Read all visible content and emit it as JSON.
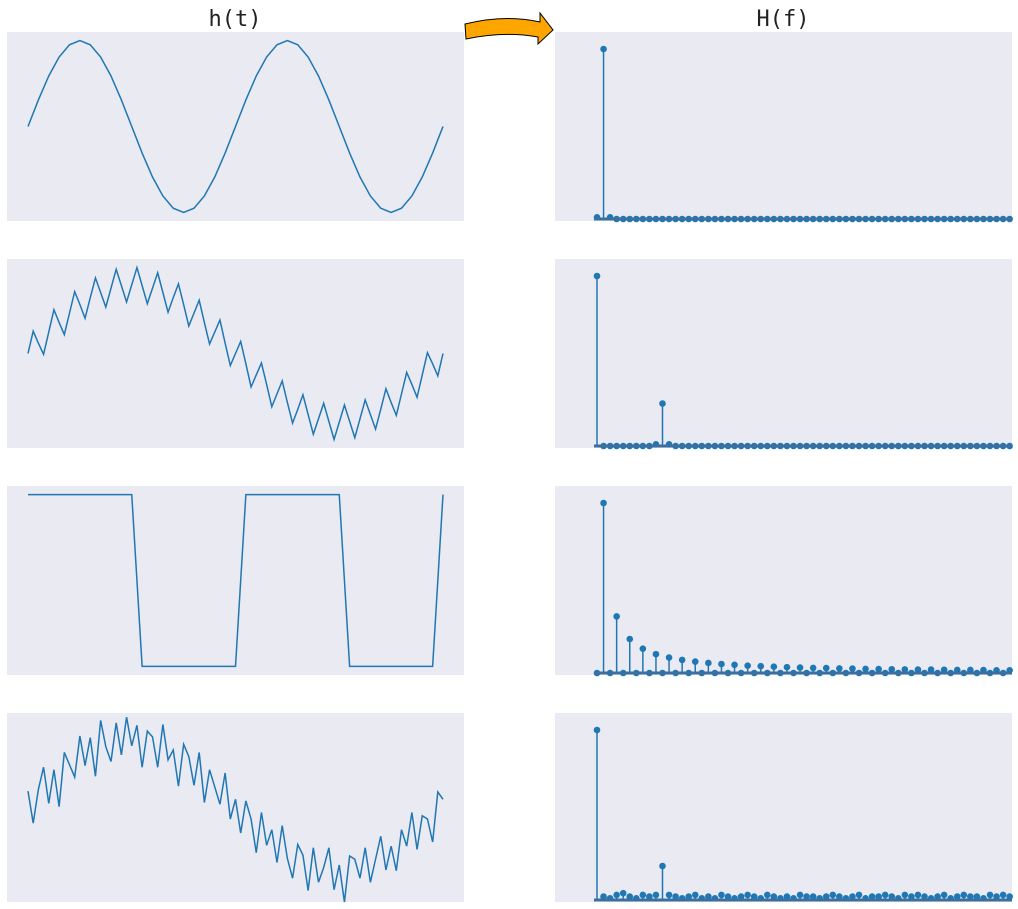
{
  "chart_data": [
    {
      "type": "line",
      "title": "h(t)",
      "color": "#1f77b4",
      "ylim": [
        -1.1,
        1.1
      ],
      "values": [
        0,
        0.309,
        0.588,
        0.809,
        0.951,
        1,
        0.951,
        0.809,
        0.588,
        0.309,
        0,
        -0.309,
        -0.588,
        -0.809,
        -0.951,
        -1,
        -0.951,
        -0.809,
        -0.588,
        -0.309,
        0,
        0.309,
        0.588,
        0.809,
        0.951,
        1,
        0.951,
        0.809,
        0.588,
        0.309,
        0,
        -0.309,
        -0.588,
        -0.809,
        -0.951,
        -1,
        -0.951,
        -0.809,
        -0.588,
        -0.309,
        0
      ]
    },
    {
      "type": "stem",
      "title": "H(f)",
      "color": "#1f77b4",
      "ylim": [
        0,
        1.1
      ],
      "values": [
        0.01,
        1,
        0.01,
        0,
        0,
        0,
        0,
        0,
        0,
        0,
        0,
        0,
        0,
        0,
        0,
        0,
        0,
        0,
        0,
        0,
        0,
        0,
        0,
        0,
        0,
        0,
        0,
        0,
        0,
        0,
        0,
        0,
        0,
        0,
        0,
        0,
        0,
        0,
        0,
        0,
        0,
        0,
        0,
        0,
        0,
        0,
        0,
        0,
        0,
        0,
        0,
        0,
        0,
        0,
        0,
        0,
        0,
        0,
        0,
        0,
        0,
        0,
        0,
        0
      ]
    },
    {
      "type": "line",
      "color": "#1f77b4",
      "ylim": [
        -1.1,
        1.1
      ],
      "values": [
        0,
        0.26,
        0.12,
        -0.01,
        0.25,
        0.51,
        0.36,
        0.22,
        0.47,
        0.72,
        0.57,
        0.41,
        0.65,
        0.88,
        0.71,
        0.54,
        0.76,
        0.98,
        0.79,
        0.6,
        0.8,
        1.0,
        0.79,
        0.58,
        0.76,
        0.94,
        0.71,
        0.48,
        0.65,
        0.81,
        0.57,
        0.32,
        0.47,
        0.62,
        0.36,
        0.11,
        0.25,
        0.39,
        0.12,
        -0.14,
        0,
        0.14,
        -0.12,
        -0.39,
        -0.25,
        -0.11,
        -0.36,
        -0.62,
        -0.47,
        -0.32,
        -0.57,
        -0.81,
        -0.65,
        -0.48,
        -0.71,
        -0.94,
        -0.76,
        -0.58,
        -0.79,
        -1.0,
        -0.8,
        -0.6,
        -0.79,
        -0.98,
        -0.76,
        -0.54,
        -0.71,
        -0.88,
        -0.65,
        -0.41,
        -0.57,
        -0.72,
        -0.47,
        -0.22,
        -0.36,
        -0.51,
        -0.25,
        0.01,
        -0.12,
        -0.26,
        0
      ]
    },
    {
      "type": "stem",
      "color": "#1f77b4",
      "ylim": [
        0,
        1.1
      ],
      "values": [
        1,
        0,
        0,
        0,
        0,
        0,
        0,
        0,
        0,
        0.01,
        0.25,
        0.01,
        0,
        0,
        0,
        0,
        0,
        0,
        0,
        0,
        0,
        0,
        0,
        0,
        0,
        0,
        0,
        0,
        0,
        0,
        0,
        0,
        0,
        0,
        0,
        0,
        0,
        0,
        0,
        0,
        0,
        0,
        0,
        0,
        0,
        0,
        0,
        0,
        0,
        0,
        0,
        0,
        0,
        0,
        0,
        0,
        0,
        0,
        0,
        0,
        0,
        0,
        0,
        0
      ]
    },
    {
      "type": "line",
      "color": "#1f77b4",
      "ylim": [
        -1.1,
        1.1
      ],
      "values": [
        1,
        1,
        1,
        1,
        1,
        1,
        1,
        1,
        1,
        1,
        1,
        -1,
        -1,
        -1,
        -1,
        -1,
        -1,
        -1,
        -1,
        -1,
        -1,
        1,
        1,
        1,
        1,
        1,
        1,
        1,
        1,
        1,
        1,
        -1,
        -1,
        -1,
        -1,
        -1,
        -1,
        -1,
        -1,
        -1,
        1
      ]
    },
    {
      "type": "stem",
      "color": "#1f77b4",
      "ylim": [
        0,
        1.1
      ],
      "values": [
        0,
        1,
        0,
        0.333,
        0,
        0.2,
        0,
        0.143,
        0,
        0.111,
        0,
        0.091,
        0,
        0.077,
        0,
        0.067,
        0,
        0.059,
        0,
        0.053,
        0,
        0.048,
        0,
        0.043,
        0,
        0.04,
        0,
        0.037,
        0,
        0.034,
        0,
        0.032,
        0,
        0.03,
        0,
        0.029,
        0,
        0.027,
        0,
        0.026,
        0,
        0.024,
        0,
        0.023,
        0,
        0.022,
        0,
        0.021,
        0,
        0.02,
        0,
        0.02,
        0,
        0.019,
        0,
        0.018,
        0,
        0.018,
        0,
        0.017,
        0,
        0.016,
        0,
        0.016
      ]
    },
    {
      "type": "line",
      "color": "#1f77b4",
      "ylim": [
        -1.15,
        1.15
      ],
      "values": [
        0.2,
        -0.19,
        0.22,
        0.49,
        0.05,
        0.46,
        0.01,
        0.67,
        0.52,
        0.37,
        0.87,
        0.51,
        0.85,
        0.38,
        1.06,
        0.74,
        0.56,
        1.03,
        0.64,
        1.1,
        0.75,
        1.0,
        0.49,
        0.93,
        0.86,
        0.49,
        1.01,
        0.58,
        0.7,
        0.26,
        0.77,
        0.62,
        0.27,
        0.67,
        0.06,
        0.46,
        0.25,
        0.04,
        0.42,
        -0.14,
        0.1,
        -0.31,
        0.08,
        -0.14,
        -0.55,
        -0.06,
        -0.46,
        -0.27,
        -0.67,
        -0.22,
        -0.62,
        -0.86,
        -0.45,
        -0.58,
        -1.01,
        -0.49,
        -0.91,
        -0.73,
        -0.49,
        -1.0,
        -0.7,
        -1.15,
        -0.59,
        -0.63,
        -0.86,
        -0.49,
        -0.91,
        -0.63,
        -0.35,
        -0.76,
        -0.47,
        -0.77,
        -0.27,
        -0.47,
        -0.06,
        -0.51,
        -0.1,
        -0.14,
        -0.42,
        0.19,
        0.1
      ]
    },
    {
      "type": "stem",
      "color": "#1f77b4",
      "ylim": [
        0,
        1.1
      ],
      "values": [
        1,
        0.02,
        0.01,
        0.03,
        0.04,
        0.02,
        0.01,
        0.03,
        0.02,
        0.03,
        0.2,
        0.03,
        0.02,
        0.01,
        0.02,
        0.03,
        0.01,
        0.02,
        0.01,
        0.03,
        0.02,
        0.01,
        0.02,
        0.03,
        0.02,
        0.01,
        0.03,
        0.02,
        0.01,
        0.02,
        0.01,
        0.03,
        0.02,
        0.02,
        0.01,
        0.02,
        0.03,
        0.02,
        0.01,
        0.02,
        0.03,
        0.01,
        0.02,
        0.02,
        0.03,
        0.02,
        0.01,
        0.03,
        0.02,
        0.03,
        0.02,
        0.01,
        0.02,
        0.03,
        0.01,
        0.02,
        0.03,
        0.02,
        0.02,
        0.01,
        0.03,
        0.02,
        0.03,
        0.02
      ]
    }
  ]
}
